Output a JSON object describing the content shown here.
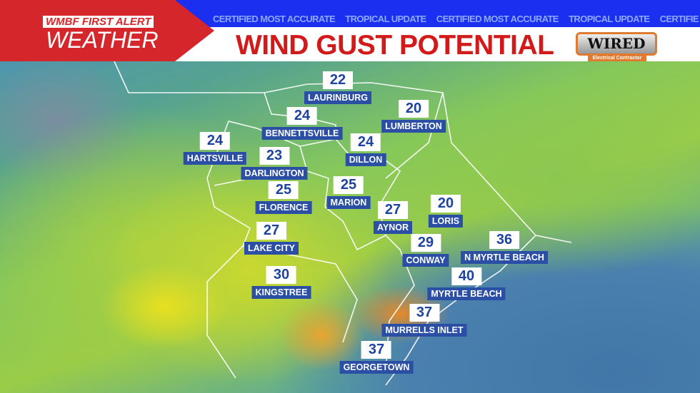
{
  "header": {
    "brand_line1": "WMBF FIRST ALERT",
    "brand_line2": "WEATHER",
    "title": "WIND GUST POTENTIAL",
    "ticker": [
      "CERTIFIED MOST ACCURATE",
      "TROPICAL UPDATE",
      "CERTIFIED MOST ACCURATE",
      "TROPICAL UPDATE",
      "CERTIFIE"
    ],
    "sponsor": {
      "name": "WIRED",
      "tagline": "Electrical Contractor"
    }
  },
  "colors": {
    "title": "#d21a1a",
    "brand": "#d4262b",
    "top_bar": "#1a2ff0",
    "label_bg": "#2a4fa5"
  },
  "units": "mph (not shown)",
  "locations": [
    {
      "name": "LAURINBURG",
      "value": 22
    },
    {
      "name": "LUMBERTON",
      "value": 20
    },
    {
      "name": "BENNETTSVILLE",
      "value": 24
    },
    {
      "name": "HARTSVILLE",
      "value": 24
    },
    {
      "name": "DILLON",
      "value": 24
    },
    {
      "name": "DARLINGTON",
      "value": 23
    },
    {
      "name": "FLORENCE",
      "value": 25
    },
    {
      "name": "MARION",
      "value": 25
    },
    {
      "name": "AYNOR",
      "value": 27
    },
    {
      "name": "LORIS",
      "value": 20
    },
    {
      "name": "LAKE CITY",
      "value": 27
    },
    {
      "name": "CONWAY",
      "value": 29
    },
    {
      "name": "N MYRTLE BEACH",
      "value": 36
    },
    {
      "name": "MYRTLE BEACH",
      "value": 40
    },
    {
      "name": "KINGSTREE",
      "value": 30
    },
    {
      "name": "MURRELLS INLET",
      "value": 37
    },
    {
      "name": "GEORGETOWN",
      "value": 37
    }
  ]
}
